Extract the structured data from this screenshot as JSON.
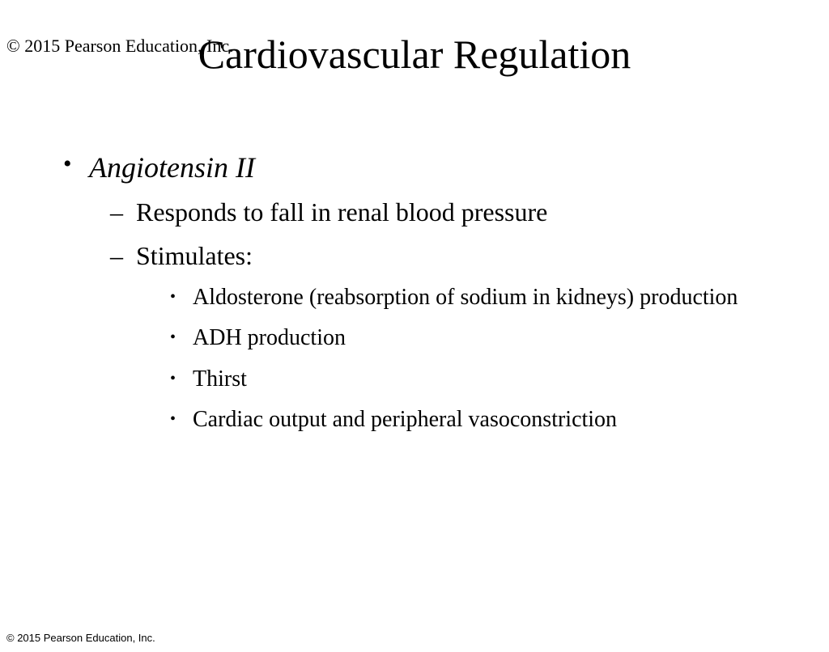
{
  "copyright_top": "© 2015 Pearson Education, Inc.",
  "title": "Cardiovascular Regulation",
  "bullets": {
    "l1_item1": "Angiotensin II",
    "l2_item1": "Responds to fall in renal blood pressure",
    "l2_item2": "Stimulates:",
    "l3_item1": "Aldosterone (reabsorption of sodium in kidneys) production",
    "l3_item2": "ADH production",
    "l3_item3": "Thirst",
    "l3_item4": "Cardiac output and peripheral vasoconstriction"
  },
  "copyright_bottom": "© 2015 Pearson Education, Inc."
}
